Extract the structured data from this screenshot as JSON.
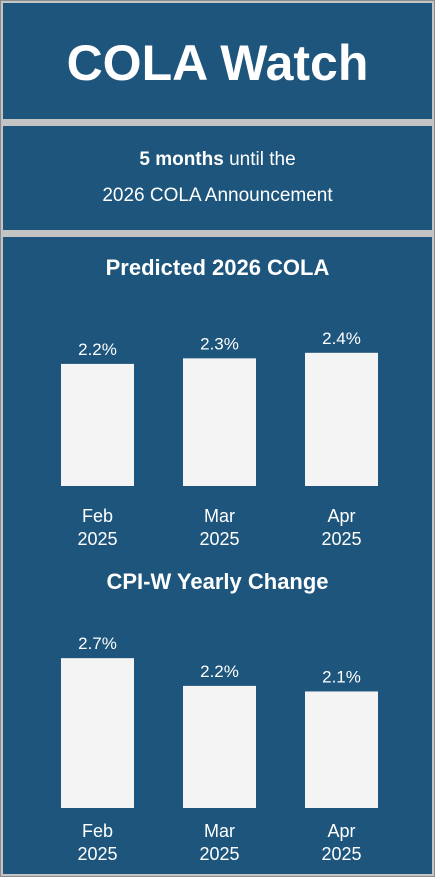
{
  "header": {
    "title": "COLA Watch"
  },
  "countdown": {
    "bold_text": "5 months",
    "rest_text": " until the",
    "line2": "2026 COLA Announcement"
  },
  "colors": {
    "panel": "#1d557c",
    "bar": "#f4f4f4",
    "background": "#c4c4c4"
  },
  "chart_data": [
    {
      "type": "bar",
      "title": "Predicted 2026 COLA",
      "categories": [
        [
          "Feb",
          "2025"
        ],
        [
          "Mar",
          "2025"
        ],
        [
          "Apr",
          "2025"
        ]
      ],
      "values": [
        2.2,
        2.3,
        2.4
      ],
      "value_labels": [
        "2.2%",
        "2.3%",
        "2.4%"
      ],
      "ylim": [
        0,
        3.4
      ]
    },
    {
      "type": "bar",
      "title": "CPI-W Yearly Change",
      "categories": [
        [
          "Feb",
          "2025"
        ],
        [
          "Mar",
          "2025"
        ],
        [
          "Apr",
          "2025"
        ]
      ],
      "values": [
        2.7,
        2.2,
        2.1
      ],
      "value_labels": [
        "2.7%",
        "2.2%",
        "2.1%"
      ],
      "ylim": [
        0,
        3.4
      ]
    }
  ]
}
